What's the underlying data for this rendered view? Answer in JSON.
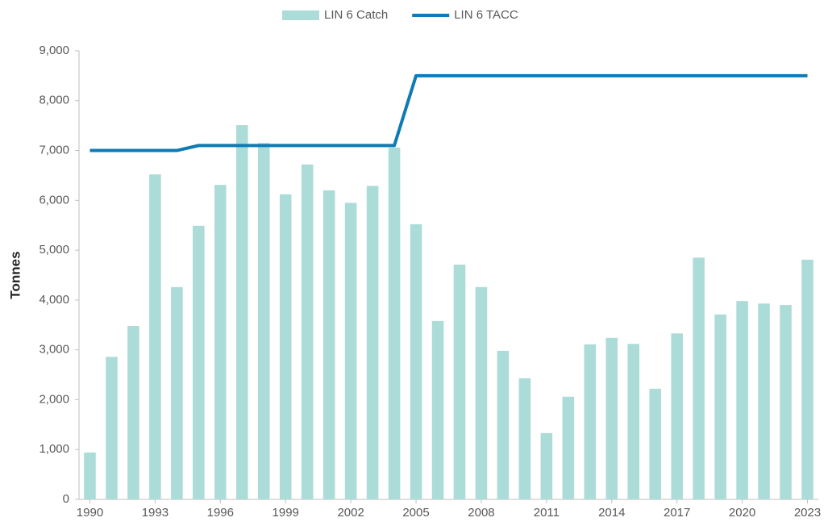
{
  "chart_data": {
    "type": "bar-line",
    "y_axis_title": "Tonnes",
    "categories": [
      "1990",
      null,
      null,
      "1993",
      null,
      null,
      "1996",
      null,
      null,
      "1999",
      null,
      null,
      "2002",
      null,
      null,
      "2005",
      null,
      null,
      "2008",
      null,
      null,
      "2011",
      null,
      null,
      "2014",
      null,
      null,
      "2017",
      null,
      null,
      "2020",
      null,
      null,
      "2023"
    ],
    "series": [
      {
        "name": "LIN 6 Catch",
        "kind": "bar",
        "color": "#acdcd7",
        "values": [
          940,
          2860,
          3480,
          6520,
          4260,
          5490,
          6310,
          7510,
          7150,
          6120,
          6720,
          6200,
          5950,
          6290,
          7060,
          5520,
          3580,
          4710,
          4260,
          2980,
          2430,
          1330,
          2060,
          3110,
          3240,
          3120,
          2220,
          3330,
          4850,
          3710,
          3980,
          3930,
          3900,
          4810
        ]
      },
      {
        "name": "LIN 6 TACC",
        "kind": "line",
        "color": "#0f7bb5",
        "values": [
          7000,
          7000,
          7000,
          7000,
          7000,
          7100,
          7100,
          7100,
          7100,
          7100,
          7100,
          7100,
          7100,
          7100,
          7100,
          8500,
          8500,
          8500,
          8500,
          8500,
          8500,
          8500,
          8500,
          8500,
          8500,
          8500,
          8500,
          8500,
          8500,
          8500,
          8500,
          8500,
          8500,
          8500
        ]
      }
    ],
    "ylim": [
      0,
      9000
    ],
    "yticks": [
      0,
      {
        "value": 1000,
        "label": "1,000"
      },
      {
        "value": 2000,
        "label": "2,000"
      },
      {
        "value": 3000,
        "label": "3,000"
      },
      {
        "value": 4000,
        "label": "4,000"
      },
      {
        "value": 5000,
        "label": "5,000"
      },
      {
        "value": 6000,
        "label": "6,000"
      },
      {
        "value": 7000,
        "label": "7,000"
      },
      {
        "value": 8000,
        "label": "8,000"
      },
      {
        "value": 9000,
        "label": "9,000"
      }
    ],
    "grid": false,
    "legend": "top"
  }
}
